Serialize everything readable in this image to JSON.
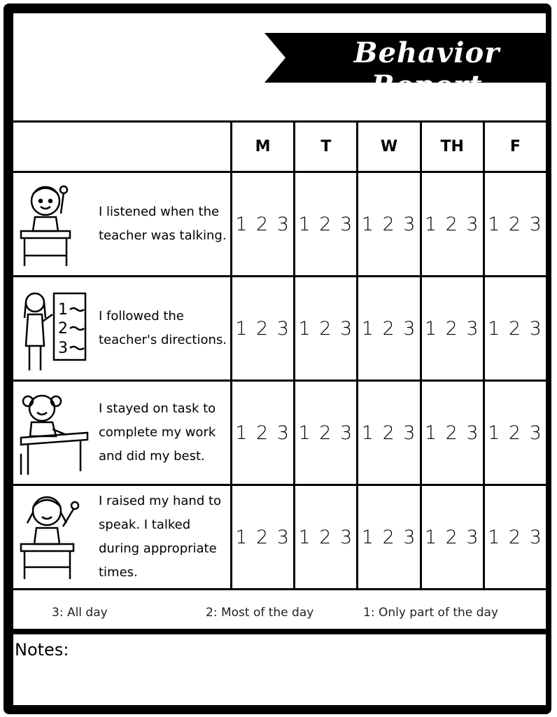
{
  "title": "Behavior Report",
  "days": [
    "M",
    "T",
    "W",
    "TH",
    "F"
  ],
  "rows": [
    {
      "text": "I listened when the teacher was talking.",
      "icon": "boy-at-desk-raising-hand",
      "scores": [
        "1 2 3",
        "1 2 3",
        "1 2 3",
        "1 2 3",
        "1 2 3"
      ]
    },
    {
      "text": "I followed the teacher's directions.",
      "icon": "teacher-at-board",
      "scores": [
        "1 2 3",
        "1 2 3",
        "1 2 3",
        "1 2 3",
        "1 2 3"
      ]
    },
    {
      "text": "I stayed on task to complete my work and did my best.",
      "icon": "girl-writing-at-desk",
      "scores": [
        "1 2 3",
        "1 2 3",
        "1 2 3",
        "1 2 3",
        "1 2 3"
      ]
    },
    {
      "text": "I raised my hand to speak. I talked during appropriate times.",
      "icon": "girl-raising-hand-at-desk",
      "scores": [
        "1 2 3",
        "1 2 3",
        "1 2 3",
        "1 2 3",
        "1 2 3"
      ]
    }
  ],
  "legend": [
    "3: All day",
    "2: Most of the day",
    "1: Only part of the day"
  ],
  "notes_label": "Notes:"
}
